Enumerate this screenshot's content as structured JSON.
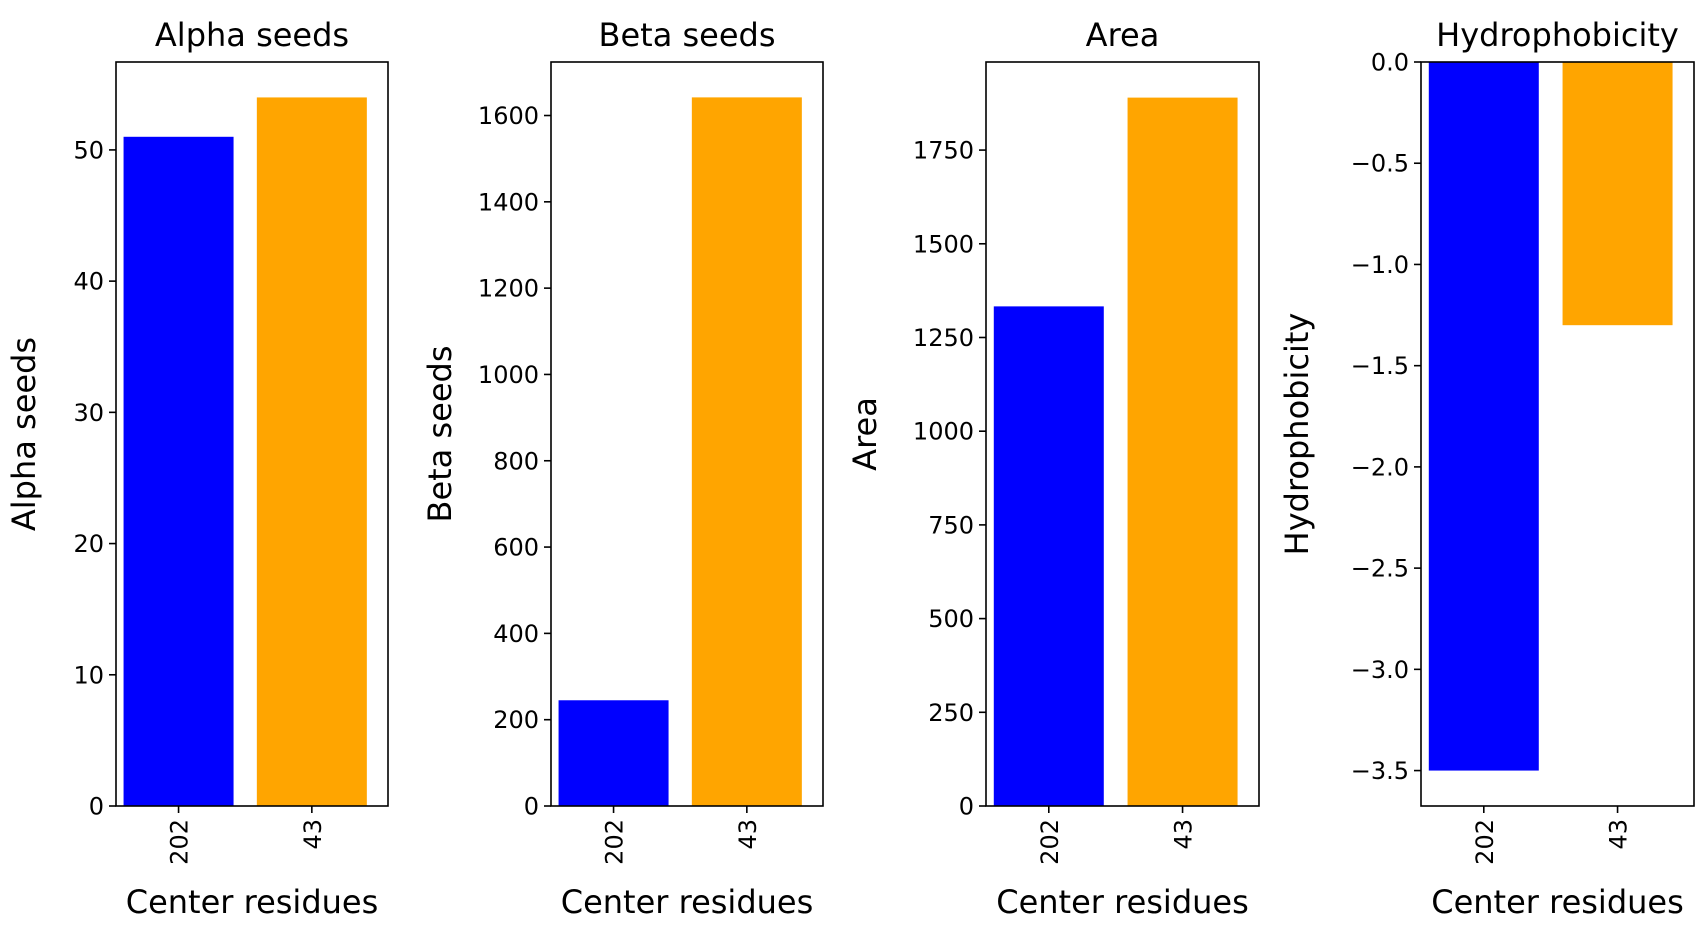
{
  "chart_data": [
    {
      "type": "bar",
      "title": "Alpha seeds",
      "xlabel": "Center residues",
      "ylabel": "Alpha seeds",
      "categories": [
        "202",
        "43"
      ],
      "values": [
        51,
        54
      ],
      "colors": [
        "#0000ff",
        "#ffa500"
      ],
      "ylim": [
        0,
        56.7
      ],
      "yticks": [
        0,
        10,
        20,
        30,
        40,
        50
      ],
      "ytick_labels": [
        "0",
        "10",
        "20",
        "30",
        "40",
        "50"
      ],
      "grid": false,
      "legend": null
    },
    {
      "type": "bar",
      "title": "Beta seeds",
      "xlabel": "Center residues",
      "ylabel": "Beta seeds",
      "categories": [
        "202",
        "43"
      ],
      "values": [
        245,
        1642
      ],
      "colors": [
        "#0000ff",
        "#ffa500"
      ],
      "ylim": [
        0,
        1724
      ],
      "yticks": [
        0,
        200,
        400,
        600,
        800,
        1000,
        1200,
        1400,
        1600
      ],
      "ytick_labels": [
        "0",
        "200",
        "400",
        "600",
        "800",
        "1000",
        "1200",
        "1400",
        "1600"
      ],
      "grid": false,
      "legend": null
    },
    {
      "type": "bar",
      "title": "Area",
      "xlabel": "Center residues",
      "ylabel": "Area",
      "categories": [
        "202",
        "43"
      ],
      "values": [
        1333,
        1890
      ],
      "colors": [
        "#0000ff",
        "#ffa500"
      ],
      "ylim": [
        0,
        1985
      ],
      "yticks": [
        0,
        250,
        500,
        750,
        1000,
        1250,
        1500,
        1750
      ],
      "ytick_labels": [
        "0",
        "250",
        "500",
        "750",
        "1000",
        "1250",
        "1500",
        "1750"
      ],
      "grid": false,
      "legend": null
    },
    {
      "type": "bar",
      "title": "Hydrophobicity",
      "xlabel": "Center residues",
      "ylabel": "Hydrophobicity",
      "categories": [
        "202",
        "43"
      ],
      "values": [
        -3.5,
        -1.3
      ],
      "colors": [
        "#0000ff",
        "#ffa500"
      ],
      "ylim": [
        -3.675,
        0
      ],
      "yticks": [
        0,
        -0.5,
        -1.0,
        -1.5,
        -2.0,
        -2.5,
        -3.0,
        -3.5
      ],
      "ytick_labels": [
        "0.0",
        "−0.5",
        "−1.0",
        "−1.5",
        "−2.0",
        "−2.5",
        "−3.0",
        "−3.5"
      ],
      "grid": false,
      "legend": null
    }
  ]
}
